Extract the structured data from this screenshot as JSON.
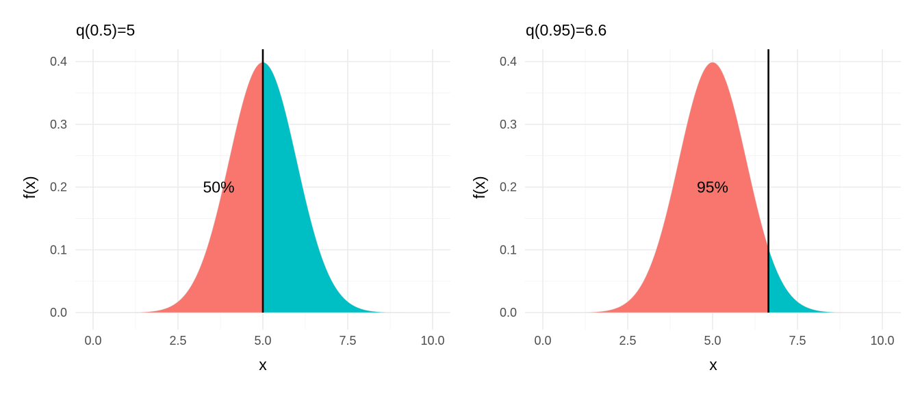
{
  "colors": {
    "left_fill": "#F8766D",
    "right_fill": "#00BFC4",
    "quantile_line": "#000000",
    "grid_major": "#EBEBEB",
    "grid_minor": "#F3F3F3"
  },
  "chart_data": [
    {
      "type": "area",
      "title": "q(0.5)=5",
      "xlabel": "x",
      "ylabel": "f(x)",
      "xlim": [
        0,
        10
      ],
      "ylim": [
        0,
        0.4
      ],
      "x_ticks": [
        0,
        2.5,
        5,
        7.5,
        10
      ],
      "x_tick_labels": [
        "0.0",
        "2.5",
        "5.0",
        "7.5",
        "10.0"
      ],
      "y_ticks": [
        0,
        0.1,
        0.2,
        0.3,
        0.4
      ],
      "y_tick_labels": [
        "0.0",
        "0.1",
        "0.2",
        "0.3",
        "0.4"
      ],
      "density": {
        "distribution": "normal",
        "mean": 5,
        "sd": 1
      },
      "quantile_prob": 0.5,
      "quantile_value": 5,
      "annotation": {
        "text": "50%",
        "x": 3.7,
        "y": 0.2
      },
      "grid": true,
      "legend": "none"
    },
    {
      "type": "area",
      "title": "q(0.95)=6.6",
      "xlabel": "x",
      "ylabel": "f(x)",
      "xlim": [
        0,
        10
      ],
      "ylim": [
        0,
        0.4
      ],
      "x_ticks": [
        0,
        2.5,
        5,
        7.5,
        10
      ],
      "x_tick_labels": [
        "0.0",
        "2.5",
        "5.0",
        "7.5",
        "10.0"
      ],
      "y_ticks": [
        0,
        0.1,
        0.2,
        0.3,
        0.4
      ],
      "y_tick_labels": [
        "0.0",
        "0.1",
        "0.2",
        "0.3",
        "0.4"
      ],
      "density": {
        "distribution": "normal",
        "mean": 5,
        "sd": 1
      },
      "quantile_prob": 0.95,
      "quantile_value": 6.645,
      "annotation": {
        "text": "95%",
        "x": 5,
        "y": 0.2
      },
      "grid": true,
      "legend": "none"
    }
  ]
}
